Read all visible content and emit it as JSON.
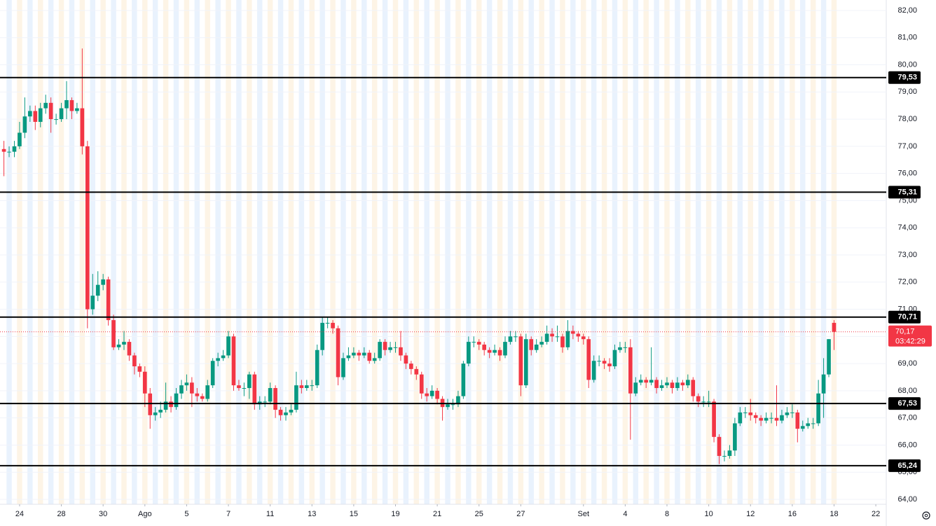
{
  "chart_data": {
    "type": "candlestick",
    "up_color": "#089981",
    "down_color": "#f23645",
    "open": [
      76.9,
      76.8,
      76.8,
      77.0,
      77.5,
      78.1,
      78.3,
      77.9,
      78.4,
      78.6,
      78.0,
      78.0,
      78.4,
      78.7,
      78.3,
      78.4,
      77.0,
      71.0,
      71.5,
      71.9,
      72.1,
      70.6,
      69.6,
      69.7,
      69.8,
      69.3,
      68.9,
      68.7,
      67.9,
      67.1,
      67.2,
      67.3,
      67.6,
      67.4,
      67.9,
      68.2,
      68.3,
      67.9,
      67.8,
      67.7,
      68.2,
      69.1,
      69.2,
      69.3,
      70.0,
      68.2,
      68.1,
      68.1,
      68.6,
      67.5,
      67.6,
      67.6,
      68.1,
      67.3,
      67.1,
      67.2,
      67.3,
      68.2,
      68.1,
      68.2,
      68.2,
      69.5,
      70.5,
      70.5,
      70.3,
      68.5,
      69.2,
      69.3,
      69.4,
      69.3,
      69.4,
      69.1,
      69.2,
      69.8,
      69.5,
      69.6,
      69.6,
      69.3,
      69.0,
      68.8,
      68.6,
      67.9,
      67.8,
      68.0,
      67.7,
      67.4,
      67.5,
      67.5,
      67.8,
      69.0,
      69.8,
      69.8,
      69.7,
      69.5,
      69.4,
      69.5,
      69.3,
      69.8,
      70.0,
      70.0,
      68.2,
      69.9,
      69.5,
      69.7,
      69.8,
      70.1,
      70.0,
      70.0,
      69.6,
      70.2,
      70.1,
      70.0,
      69.9,
      68.4,
      69.1,
      69.1,
      69.0,
      68.9,
      69.5,
      69.6,
      69.6,
      67.9,
      68.3,
      68.4,
      68.3,
      68.4,
      68.1,
      68.2,
      68.3,
      68.1,
      68.3,
      68.2,
      68.4,
      67.8,
      67.6,
      67.6,
      67.6,
      66.3,
      65.6,
      65.6,
      65.8,
      66.8,
      67.2,
      67.2,
      67.1,
      67.0,
      66.9,
      67.0,
      67.0,
      66.9,
      67.1,
      67.2,
      67.2,
      66.6,
      66.7,
      66.8,
      66.8,
      67.9,
      68.6,
      70.5
    ],
    "high": [
      77.2,
      77.0,
      77.2,
      77.9,
      78.8,
      78.5,
      78.5,
      78.6,
      78.9,
      78.8,
      78.2,
      78.6,
      79.4,
      78.8,
      78.6,
      80.6,
      77.2,
      72.3,
      72.4,
      72.3,
      72.2,
      70.8,
      69.9,
      70.2,
      69.9,
      69.4,
      69.0,
      68.9,
      68.1,
      67.4,
      67.6,
      68.3,
      67.8,
      68.1,
      68.4,
      68.6,
      68.5,
      68.1,
      67.9,
      68.4,
      69.2,
      69.4,
      69.5,
      70.2,
      70.1,
      68.4,
      68.3,
      68.7,
      68.7,
      67.8,
      67.8,
      68.3,
      68.2,
      67.4,
      67.4,
      67.5,
      68.7,
      68.4,
      68.4,
      68.4,
      69.7,
      70.7,
      70.7,
      70.6,
      70.4,
      69.4,
      69.6,
      69.6,
      69.5,
      69.6,
      69.5,
      69.4,
      69.9,
      69.9,
      69.8,
      69.8,
      70.2,
      69.4,
      69.1,
      68.9,
      68.7,
      68.1,
      68.2,
      68.1,
      67.8,
      67.7,
      67.7,
      68.0,
      69.1,
      70.0,
      70.0,
      69.9,
      69.8,
      69.6,
      69.7,
      69.6,
      70.0,
      70.2,
      70.2,
      70.1,
      70.1,
      70.0,
      69.9,
      70.0,
      70.4,
      70.3,
      70.4,
      70.1,
      70.6,
      70.4,
      70.2,
      70.1,
      70.0,
      69.3,
      69.3,
      69.2,
      69.2,
      69.7,
      69.8,
      69.8,
      69.9,
      68.5,
      68.6,
      68.5,
      69.6,
      68.5,
      68.4,
      68.5,
      68.4,
      68.5,
      68.4,
      68.6,
      68.5,
      67.9,
      67.8,
      68.0,
      67.7,
      66.4,
      65.8,
      66.0,
      67.0,
      67.4,
      67.4,
      67.7,
      67.2,
      67.1,
      67.2,
      67.2,
      68.2,
      67.3,
      67.4,
      67.5,
      67.3,
      66.9,
      67.0,
      67.0,
      68.4,
      69.2,
      69.9,
      70.6
    ],
    "low": [
      75.9,
      76.6,
      76.6,
      76.9,
      77.3,
      77.9,
      77.6,
      77.7,
      78.2,
      77.5,
      77.8,
      77.9,
      78.0,
      78.0,
      78.2,
      76.7,
      70.3,
      70.8,
      71.3,
      71.7,
      70.4,
      69.5,
      69.5,
      69.5,
      69.1,
      68.6,
      68.5,
      67.4,
      66.6,
      66.9,
      67.0,
      67.2,
      67.2,
      67.3,
      67.7,
      68.0,
      67.4,
      67.6,
      67.6,
      67.6,
      68.1,
      68.9,
      69.1,
      69.2,
      68.0,
      68.0,
      67.8,
      67.7,
      67.3,
      67.3,
      67.4,
      67.5,
      67.0,
      66.9,
      66.9,
      67.1,
      67.2,
      67.9,
      68.0,
      68.0,
      68.1,
      69.3,
      70.3,
      70.1,
      68.2,
      68.4,
      69.1,
      69.2,
      69.1,
      69.2,
      69.0,
      69.0,
      69.1,
      69.3,
      69.4,
      69.4,
      69.1,
      68.8,
      68.6,
      68.4,
      67.7,
      67.6,
      67.7,
      67.5,
      66.9,
      67.3,
      67.3,
      67.4,
      67.7,
      68.9,
      69.6,
      69.5,
      69.3,
      69.2,
      69.3,
      69.1,
      69.2,
      69.7,
      69.8,
      67.8,
      68.1,
      69.3,
      69.4,
      69.6,
      69.7,
      69.8,
      69.8,
      69.4,
      69.5,
      69.9,
      69.8,
      69.7,
      68.1,
      68.3,
      68.9,
      68.8,
      68.7,
      68.8,
      69.4,
      69.4,
      66.2,
      67.8,
      68.2,
      68.1,
      68.2,
      67.9,
      68.0,
      68.1,
      67.9,
      68.0,
      68.0,
      68.1,
      67.6,
      67.4,
      67.4,
      67.4,
      66.1,
      65.3,
      65.4,
      65.5,
      65.6,
      66.7,
      67.0,
      66.9,
      66.8,
      66.7,
      66.8,
      66.8,
      66.7,
      66.8,
      67.0,
      67.0,
      66.1,
      66.5,
      66.6,
      66.6,
      66.7,
      67.0,
      68.5,
      69.5
    ],
    "close": [
      76.8,
      76.8,
      77.0,
      77.5,
      78.1,
      78.3,
      77.9,
      78.4,
      78.6,
      78.0,
      78.0,
      78.4,
      78.7,
      78.3,
      78.4,
      77.0,
      71.0,
      71.5,
      71.9,
      72.1,
      70.6,
      69.6,
      69.7,
      69.8,
      69.3,
      68.9,
      68.7,
      67.9,
      67.1,
      67.2,
      67.3,
      67.6,
      67.4,
      67.9,
      68.2,
      68.3,
      67.9,
      67.8,
      67.7,
      68.2,
      69.1,
      69.2,
      69.3,
      70.0,
      68.2,
      68.1,
      68.1,
      68.6,
      67.5,
      67.6,
      67.6,
      68.1,
      67.3,
      67.1,
      67.2,
      67.3,
      68.2,
      68.1,
      68.2,
      68.2,
      69.5,
      70.5,
      70.5,
      70.3,
      68.5,
      69.2,
      69.3,
      69.4,
      69.3,
      69.4,
      69.1,
      69.2,
      69.8,
      69.5,
      69.6,
      69.6,
      69.3,
      69.0,
      68.8,
      68.6,
      67.9,
      67.8,
      68.0,
      67.7,
      67.4,
      67.5,
      67.5,
      67.8,
      69.0,
      69.8,
      69.8,
      69.7,
      69.5,
      69.4,
      69.5,
      69.3,
      69.8,
      70.0,
      70.0,
      68.2,
      69.9,
      69.5,
      69.7,
      69.8,
      70.1,
      70.0,
      70.0,
      69.6,
      70.2,
      70.1,
      70.0,
      69.9,
      68.4,
      69.1,
      69.1,
      69.0,
      68.9,
      69.5,
      69.6,
      69.6,
      67.9,
      68.3,
      68.4,
      68.3,
      68.4,
      68.1,
      68.2,
      68.3,
      68.1,
      68.3,
      68.2,
      68.4,
      67.8,
      67.6,
      67.6,
      67.6,
      66.3,
      65.6,
      65.6,
      65.8,
      66.8,
      67.2,
      67.2,
      67.1,
      67.0,
      66.9,
      67.0,
      67.0,
      66.9,
      67.1,
      67.2,
      67.2,
      66.6,
      66.7,
      66.8,
      66.8,
      67.9,
      68.6,
      69.9,
      70.17
    ],
    "xlim": [
      -0.75,
      169
    ],
    "xticks": [
      {
        "value": 3,
        "label": "24"
      },
      {
        "value": 11,
        "label": "28"
      },
      {
        "value": 19,
        "label": "30"
      },
      {
        "value": 27,
        "label": "Ago"
      },
      {
        "value": 35,
        "label": "5"
      },
      {
        "value": 43,
        "label": "7"
      },
      {
        "value": 51,
        "label": "11"
      },
      {
        "value": 59,
        "label": "13"
      },
      {
        "value": 67,
        "label": "15"
      },
      {
        "value": 75,
        "label": "19"
      },
      {
        "value": 83,
        "label": "21"
      },
      {
        "value": 91,
        "label": "25"
      },
      {
        "value": 99,
        "label": "27"
      },
      {
        "value": 111,
        "label": "Set"
      },
      {
        "value": 119,
        "label": "4"
      },
      {
        "value": 127,
        "label": "8"
      },
      {
        "value": 135,
        "label": "10"
      },
      {
        "value": 143,
        "label": "12"
      },
      {
        "value": 151,
        "label": "16"
      },
      {
        "value": 159,
        "label": "18"
      },
      {
        "value": 167,
        "label": "22"
      }
    ],
    "ylim": [
      64,
      82
    ],
    "yticks": [
      {
        "value": 64,
        "label": "64,00"
      },
      {
        "value": 65,
        "label": "65,00"
      },
      {
        "value": 66,
        "label": "66,00"
      },
      {
        "value": 67,
        "label": "67,00"
      },
      {
        "value": 68,
        "label": "68,00"
      },
      {
        "value": 69,
        "label": "69,00"
      },
      {
        "value": 70,
        "label": "70,00"
      },
      {
        "value": 71,
        "label": "71,00"
      },
      {
        "value": 72,
        "label": "72,00"
      },
      {
        "value": 73,
        "label": "73,00"
      },
      {
        "value": 74,
        "label": "74,00"
      },
      {
        "value": 75,
        "label": "75,00"
      },
      {
        "value": 76,
        "label": "76,00"
      },
      {
        "value": 77,
        "label": "77,00"
      },
      {
        "value": 78,
        "label": "78,00"
      },
      {
        "value": 79,
        "label": "79,00"
      },
      {
        "value": 80,
        "label": "80,00"
      },
      {
        "value": 81,
        "label": "81,00"
      },
      {
        "value": 82,
        "label": "82,00"
      }
    ],
    "levels": [
      {
        "value": 79.53,
        "label": "79,53"
      },
      {
        "value": 75.31,
        "label": "75,31"
      },
      {
        "value": 70.71,
        "label": "70,71"
      },
      {
        "value": 67.53,
        "label": "67,53"
      },
      {
        "value": 65.24,
        "label": "65,24"
      }
    ],
    "last_price": {
      "value": 70.17,
      "label": "70,17"
    },
    "countdown": "03:42:29"
  }
}
